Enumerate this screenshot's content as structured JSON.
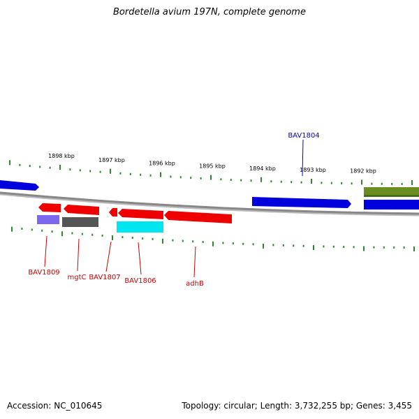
{
  "title": "Bordetella avium 197N, complete genome",
  "footer": {
    "accession": "Accession: NC_010645",
    "summary": "Topology: circular; Length: 3,732,255 bp; Genes: 3,455"
  },
  "colors": {
    "backbone": "#888888",
    "tick": "#2a8a2a",
    "label_red": "#cc0000",
    "label_blue": "#0000cc"
  },
  "ticks": [
    {
      "label": "1898 kbp"
    },
    {
      "label": "1897 kbp"
    },
    {
      "label": "1896 kbp"
    },
    {
      "label": "1895 kbp"
    },
    {
      "label": "1894 kbp"
    },
    {
      "label": "1893 kbp"
    },
    {
      "label": "1892 kbp"
    }
  ],
  "gene_labels": [
    {
      "text": "BAV1804",
      "color": "#0000cc"
    },
    {
      "text": "BAV1809",
      "color": "#cc0000"
    },
    {
      "text": "mgtC",
      "color": "#cc0000"
    },
    {
      "text": "BAV1807",
      "color": "#cc0000"
    },
    {
      "text": "BAV1806",
      "color": "#cc0000"
    },
    {
      "text": "adhB",
      "color": "#cc0000"
    }
  ]
}
